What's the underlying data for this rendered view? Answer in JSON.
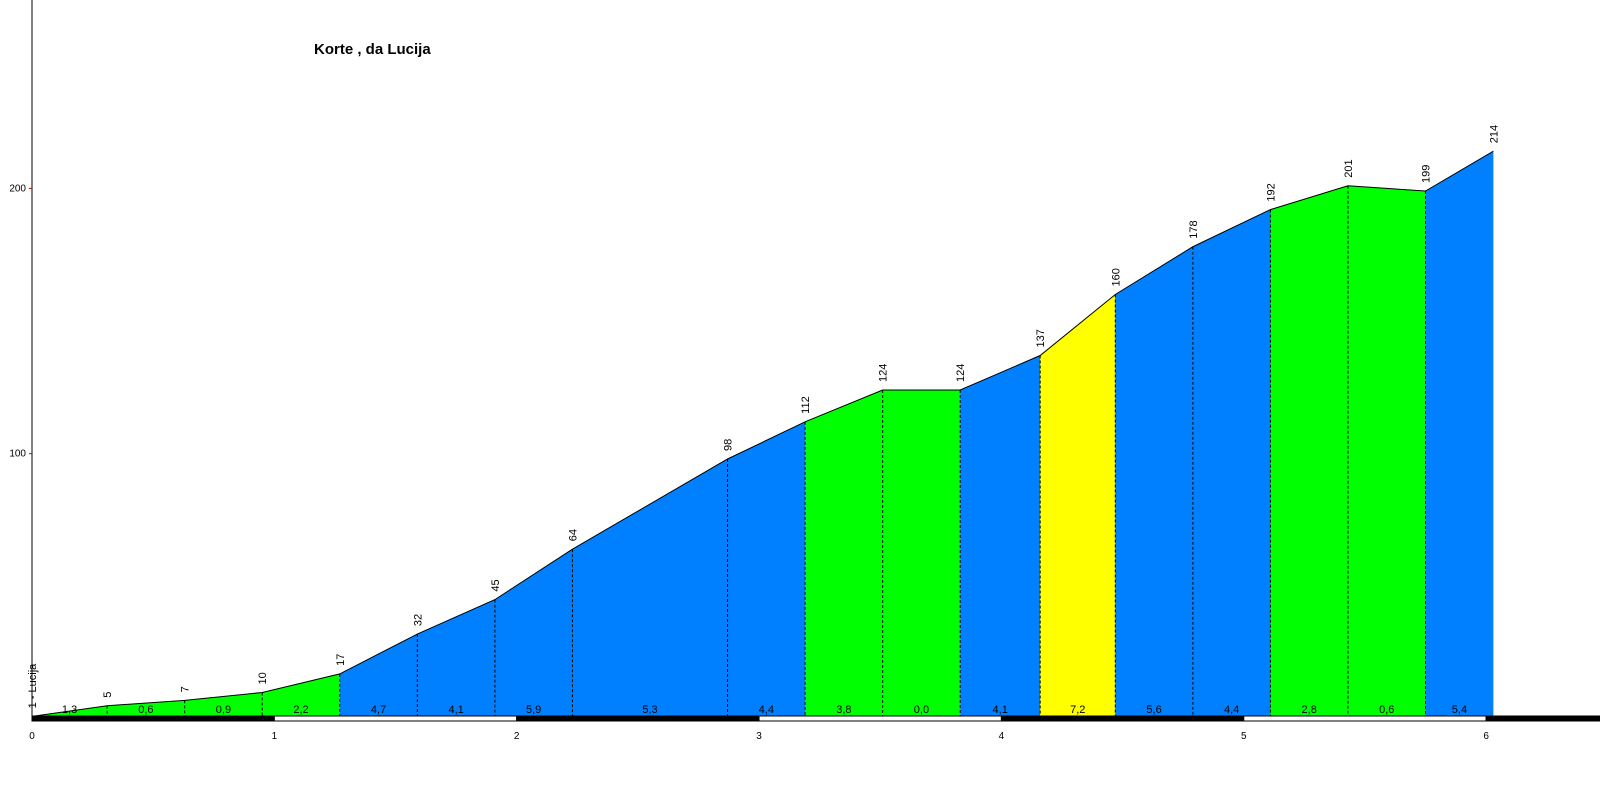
{
  "chart_data": {
    "type": "profile",
    "title": "Korte , da Lucija",
    "start_label": "1 - Lucija",
    "x": [
      0,
      0.31,
      0.63,
      0.95,
      1.27,
      1.59,
      1.91,
      2.23,
      2.87,
      3.19,
      3.51,
      3.83,
      4.16,
      4.47,
      4.79,
      5.11,
      5.43,
      5.75,
      6.03
    ],
    "values": [
      1,
      5,
      7,
      10,
      17,
      32,
      45,
      64,
      98,
      112,
      124,
      124,
      137,
      160,
      178,
      192,
      201,
      199,
      214
    ],
    "grades": [
      {
        "value": 1.3,
        "label": "1,3"
      },
      {
        "value": 0.6,
        "label": "0,6"
      },
      {
        "value": 0.9,
        "label": "0,9"
      },
      {
        "value": 2.2,
        "label": "2,2"
      },
      {
        "value": 4.7,
        "label": "4,7"
      },
      {
        "value": 4.1,
        "label": "4,1"
      },
      {
        "value": 5.9,
        "label": "5,9"
      },
      {
        "value": 5.3,
        "label": "5,3"
      },
      {
        "value": 4.4,
        "label": "4,4"
      },
      {
        "value": 3.8,
        "label": "3,8"
      },
      {
        "value": 0.0,
        "label": "0,0"
      },
      {
        "value": 4.1,
        "label": "4,1"
      },
      {
        "value": 7.2,
        "label": "7,2"
      },
      {
        "value": 5.6,
        "label": "5,6"
      },
      {
        "value": 4.4,
        "label": "4,4"
      },
      {
        "value": 2.8,
        "label": "2,8"
      },
      {
        "value": 0.6,
        "label": "0,6"
      },
      {
        "value": 5.4,
        "label": "5,4"
      }
    ],
    "segment_colors": [
      "#00ff00",
      "#00ff00",
      "#00ff00",
      "#00ff00",
      "#0080ff",
      "#0080ff",
      "#0080ff",
      "#0080ff",
      "#0080ff",
      "#00ff00",
      "#00ff00",
      "#0080ff",
      "#ffff00",
      "#0080ff",
      "#0080ff",
      "#00ff00",
      "#00ff00",
      "#0080ff"
    ],
    "xlim": [
      0,
      6.47
    ],
    "xticks": [
      0,
      1,
      2,
      3,
      4,
      5,
      6
    ],
    "ylim": [
      0,
      271
    ],
    "yticks": [
      100,
      200
    ]
  }
}
